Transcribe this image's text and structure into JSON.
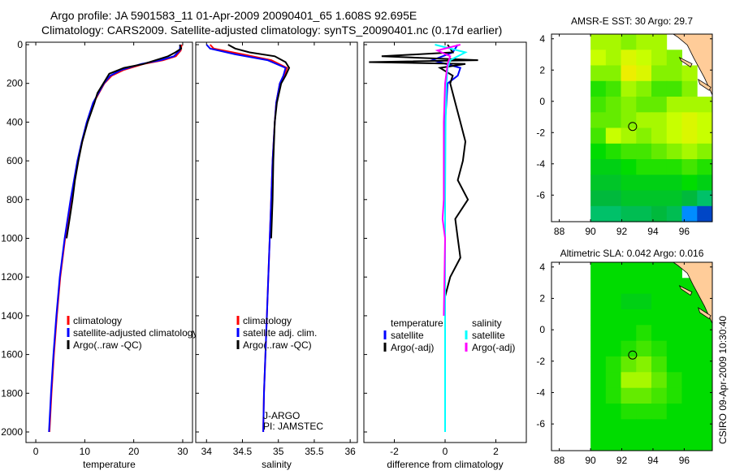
{
  "title_line1": "Argo profile: JA 5901583_11 01-Apr-2009 20090401_65 1.608S 92.695E",
  "title_line2": "Climatology: CARS2009. Satellite-adjusted climatology: synTS_20090401.nc (0.17d earlier)",
  "timestamp": "CSIRO 09-Apr-2009 10:30:40",
  "chart_data": [
    {
      "type": "line",
      "id": "temperature",
      "xlabel": "temperature",
      "ylabel": "",
      "xlim": [
        -2,
        32
      ],
      "ylim": [
        2000,
        0
      ],
      "xticks": [
        0,
        10,
        20,
        30
      ],
      "yticks": [
        0,
        200,
        400,
        600,
        800,
        1000,
        1200,
        1400,
        1600,
        1800,
        2000
      ],
      "legend": [
        "climatology",
        "satellite-adjusted climatology",
        "Argo(..raw -QC)"
      ],
      "series": [
        {
          "name": "climatology",
          "color": "#ff0000",
          "depth": [
            0,
            30,
            60,
            80,
            100,
            130,
            160,
            200,
            300,
            400,
            500,
            600,
            800,
            1000,
            1200,
            1400,
            1600,
            1800,
            2000
          ],
          "values": [
            29.8,
            29.6,
            28.6,
            26,
            22,
            18,
            15.5,
            14,
            11.8,
            10.5,
            9.5,
            8.6,
            7.2,
            6.0,
            5.0,
            4.3,
            3.7,
            3.2,
            2.8
          ]
        },
        {
          "name": "satellite-adjusted climatology",
          "color": "#0000ff",
          "depth": [
            0,
            30,
            60,
            80,
            100,
            130,
            160,
            200,
            300,
            400,
            500,
            600,
            800,
            1000,
            1200,
            1400,
            1600,
            1800,
            2000
          ],
          "values": [
            29.5,
            29.4,
            28.2,
            25.5,
            21.5,
            17.5,
            15.2,
            13.9,
            11.7,
            10.4,
            9.4,
            8.5,
            7.1,
            5.9,
            4.9,
            4.2,
            3.6,
            3.1,
            2.7
          ]
        },
        {
          "name": "Argo(..raw -QC)",
          "color": "#000000",
          "depth": [
            0,
            20,
            40,
            60,
            80,
            100,
            120,
            150,
            200,
            250,
            300,
            400,
            500,
            600,
            700,
            800,
            900,
            1000
          ],
          "values": [
            29.4,
            29.7,
            28.5,
            27,
            24.5,
            22,
            18,
            15,
            13.8,
            12.6,
            12,
            10.6,
            9.5,
            8.7,
            8.0,
            7.5,
            6.9,
            6.3
          ]
        }
      ]
    },
    {
      "type": "line",
      "id": "salinity",
      "xlabel": "salinity",
      "xlim": [
        33.85,
        36.1
      ],
      "ylim": [
        2000,
        0
      ],
      "xticks": [
        34,
        34.5,
        35,
        35.5,
        36
      ],
      "legend": [
        "climatology",
        "satellite adj. clim.",
        "Argo(..raw -QC)"
      ],
      "annotations": [
        "J-ARGO",
        "PI: JAMSTEC"
      ],
      "series": [
        {
          "name": "climatology",
          "color": "#ff0000",
          "depth": [
            0,
            20,
            50,
            80,
            120,
            160,
            200,
            300,
            400,
            600,
            800,
            1000,
            1400,
            1800,
            2000
          ],
          "values": [
            34.05,
            34.1,
            34.5,
            34.9,
            35.12,
            35.08,
            35.02,
            34.97,
            34.95,
            34.92,
            34.9,
            34.88,
            34.84,
            34.8,
            34.79
          ]
        },
        {
          "name": "satellite adj. clim.",
          "color": "#0000ff",
          "depth": [
            0,
            20,
            50,
            80,
            120,
            160,
            200,
            300,
            400,
            600,
            800,
            1000,
            1400,
            1800,
            2000
          ],
          "values": [
            34.0,
            34.05,
            34.4,
            34.85,
            35.1,
            35.07,
            35.02,
            34.97,
            34.95,
            34.92,
            34.9,
            34.88,
            34.84,
            34.8,
            34.79
          ]
        },
        {
          "name": "Argo(..raw -QC)",
          "color": "#000000",
          "depth": [
            0,
            20,
            40,
            60,
            90,
            120,
            160,
            200,
            300,
            400,
            600,
            800,
            1000
          ],
          "values": [
            34.3,
            34.4,
            34.6,
            34.95,
            35.1,
            35.15,
            35.1,
            35.04,
            34.98,
            34.95,
            34.93,
            34.92,
            34.9
          ]
        }
      ]
    },
    {
      "type": "line",
      "id": "difference",
      "xlabel": "difference from climatology",
      "xlim": [
        -3.2,
        3.2
      ],
      "ylim": [
        2000,
        0
      ],
      "xticks": [
        -2,
        0,
        2
      ],
      "legend_headers": [
        "temperature",
        "salinity"
      ],
      "legend": [
        "satellite",
        "Argo(-adj)",
        "satellite",
        "Argo(-adj)"
      ],
      "series": [
        {
          "name": "temperature satellite",
          "color": "#0000ff",
          "depth": [
            0,
            40,
            80,
            120,
            160,
            200,
            300,
            400,
            600,
            1000,
            1500,
            2000
          ],
          "values": [
            0.5,
            0.3,
            -0.5,
            0.6,
            0.5,
            0.1,
            0.05,
            0.0,
            0.0,
            0.0,
            0.0,
            0.0
          ]
        },
        {
          "name": "temperature Argo(-adj)",
          "color": "#000000",
          "depth": [
            0,
            40,
            60,
            80,
            90,
            100,
            120,
            160,
            200,
            300,
            400,
            500,
            600,
            700,
            800,
            900,
            1000,
            1100,
            1200,
            1300
          ],
          "values": [
            0.1,
            0.3,
            -2.5,
            1.3,
            -3.0,
            0.8,
            -0.2,
            0.3,
            0.2,
            0.4,
            0.6,
            0.8,
            0.7,
            0.5,
            0.9,
            0.4,
            0.5,
            0.6,
            0.2,
            0.0
          ]
        },
        {
          "name": "salinity satellite",
          "color": "#00ffff",
          "depth": [
            0,
            40,
            80,
            120,
            200,
            400,
            800,
            1200,
            1600,
            2000
          ],
          "values": [
            -0.4,
            0.8,
            0.2,
            0.1,
            0.05,
            0.02,
            0.0,
            0.0,
            0.0,
            0.0
          ]
        },
        {
          "name": "salinity Argo(-adj)",
          "color": "#ff00ff",
          "depth": [
            0,
            30,
            60,
            100,
            200,
            400,
            800,
            900,
            1000,
            1400
          ],
          "values": [
            0.6,
            -0.3,
            0.2,
            0.1,
            0.0,
            -0.05,
            -0.05,
            -0.1,
            0.0,
            -0.05
          ]
        }
      ]
    },
    {
      "type": "heatmap",
      "id": "sst-map",
      "title": "AMSR-E SST: 30 Argo: 29.7",
      "xlim": [
        87.5,
        97.8
      ],
      "ylim": [
        -7.7,
        4.3
      ],
      "xticks": [
        88,
        90,
        92,
        94,
        96
      ],
      "yticks": [
        4,
        2,
        0,
        -2,
        -4,
        -6
      ],
      "data_lon_range": [
        90,
        97.8
      ],
      "rows_lat_from_north": [
        [
          30.0,
          30.0,
          29.9,
          30.0,
          30.0,
          null,
          null,
          null
        ],
        [
          30.1,
          30.0,
          30.2,
          30.1,
          30.0,
          29.9,
          null,
          31.0
        ],
        [
          29.9,
          29.9,
          30.3,
          30.2,
          29.9,
          29.9,
          30.0,
          null
        ],
        [
          29.6,
          29.7,
          30.0,
          29.9,
          29.7,
          29.7,
          29.9,
          null
        ],
        [
          29.7,
          29.8,
          29.9,
          29.8,
          29.8,
          30.0,
          30.0,
          30.0
        ],
        [
          29.8,
          29.8,
          29.9,
          30.0,
          30.0,
          30.1,
          30.2,
          30.1
        ],
        [
          29.7,
          30.1,
          30.0,
          29.9,
          30.0,
          30.1,
          30.2,
          30.1
        ],
        [
          29.5,
          29.6,
          29.7,
          29.7,
          29.8,
          29.9,
          30.0,
          29.9
        ],
        [
          29.4,
          29.4,
          29.5,
          29.6,
          29.6,
          29.6,
          29.7,
          29.6
        ],
        [
          29.3,
          29.3,
          29.4,
          29.4,
          29.4,
          29.4,
          29.5,
          29.4
        ],
        [
          29.2,
          29.2,
          29.3,
          29.3,
          29.3,
          29.3,
          29.2,
          29.0
        ],
        [
          29.0,
          29.0,
          29.1,
          29.1,
          29.2,
          29.1,
          28.4,
          28.2
        ]
      ],
      "argo_position": [
        92.695,
        -1.608
      ]
    },
    {
      "type": "heatmap",
      "id": "sla-map",
      "title": "Altimetric SLA: 0.042 Argo: 0.016",
      "xlim": [
        87.5,
        97.8
      ],
      "ylim": [
        -7.7,
        4.3
      ],
      "xticks": [
        88,
        90,
        92,
        94,
        96
      ],
      "yticks": [
        4,
        2,
        0,
        -2,
        -4,
        -6
      ],
      "data_lon_range": [
        90,
        97.8
      ],
      "rows_lat_from_north": [
        [
          29.5,
          29.5,
          29.5,
          29.5,
          29.5,
          29.5,
          null,
          null
        ],
        [
          29.5,
          29.5,
          29.5,
          29.5,
          29.5,
          29.5,
          29.5,
          null
        ],
        [
          29.5,
          29.5,
          29.4,
          29.4,
          29.5,
          29.5,
          29.5,
          29.5
        ],
        [
          29.5,
          29.5,
          29.5,
          29.5,
          29.5,
          29.5,
          29.5,
          29.5
        ],
        [
          29.5,
          29.5,
          29.5,
          29.6,
          29.5,
          29.5,
          29.5,
          29.5
        ],
        [
          29.5,
          29.5,
          29.6,
          29.7,
          29.6,
          29.5,
          29.5,
          29.5
        ],
        [
          29.5,
          29.6,
          29.8,
          29.9,
          29.7,
          29.5,
          29.5,
          29.5
        ],
        [
          29.5,
          29.6,
          30.0,
          30.0,
          29.8,
          29.6,
          29.5,
          29.5
        ],
        [
          29.5,
          29.6,
          29.8,
          29.8,
          29.7,
          29.6,
          29.5,
          29.5
        ],
        [
          29.5,
          29.5,
          29.6,
          29.6,
          29.6,
          29.5,
          29.5,
          29.5
        ],
        [
          29.5,
          29.5,
          29.5,
          29.5,
          29.5,
          29.5,
          29.5,
          29.5
        ],
        [
          29.5,
          29.5,
          29.5,
          29.5,
          29.5,
          29.5,
          29.5,
          29.5
        ]
      ],
      "argo_position": [
        92.695,
        -1.608
      ]
    }
  ],
  "colors": {
    "land": "#ffcc99",
    "axis": "#000000"
  }
}
